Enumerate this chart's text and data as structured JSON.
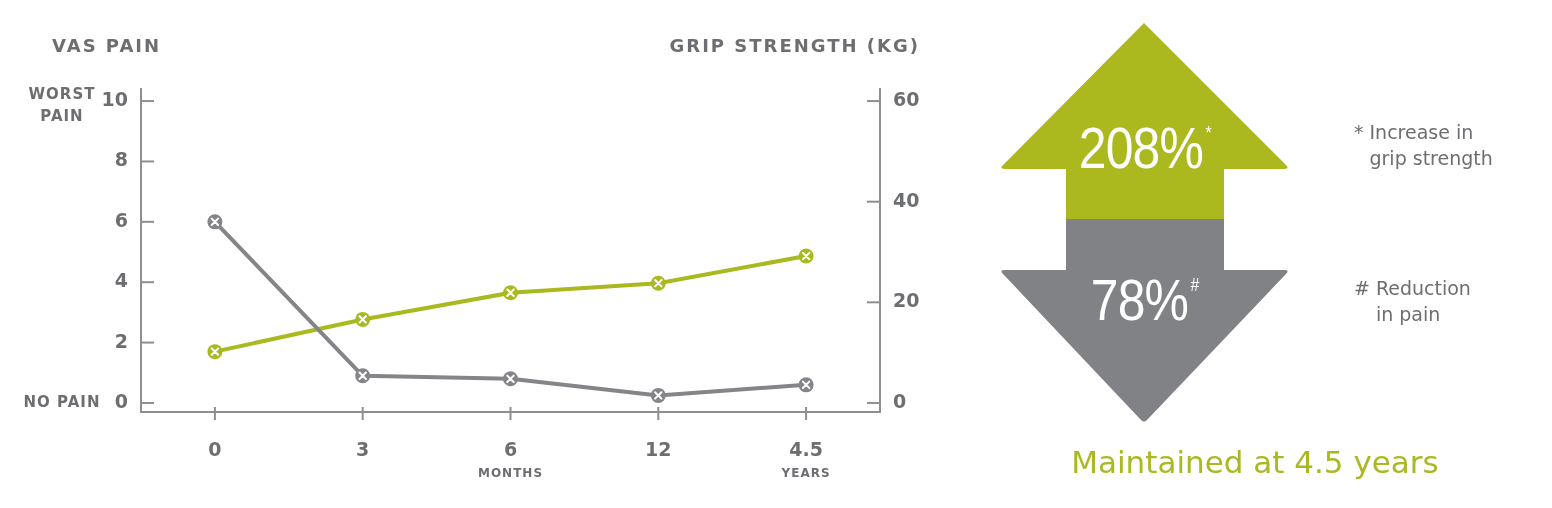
{
  "chart_data": [
    {
      "type": "line",
      "ylabel": "VAS PAIN",
      "y2label": "GRIP STRENGTH (KG)",
      "categories": [
        "0",
        "3",
        "6\nMONTHS",
        "12",
        "4.5\nYEARS"
      ],
      "ylim": [
        -0.3,
        10.4
      ],
      "yticks": [
        0,
        2,
        4,
        6,
        8,
        10
      ],
      "y2lim": [
        -1.8,
        62.4
      ],
      "y2ticks": [
        0,
        20,
        40,
        60
      ],
      "marker": "circle",
      "series": [
        {
          "color": "#848589",
          "values": [
            6,
            0.9,
            0.8,
            0.25,
            0.6
          ]
        },
        {
          "color": "#a9b91f",
          "axis": "y2",
          "values": [
            10.2,
            16.6,
            21.9,
            23.8,
            29.2
          ]
        }
      ],
      "annotations": [
        "WORST\nPAIN",
        "NO PAIN"
      ]
    },
    {
      "type": "other",
      "annotations": [
        "208%$^{*}$",
        "78%$^{#}$",
        "* Increase in\ngrip strength",
        "# Reduction\nin pain",
        "Maintained at 4.5 years"
      ]
    }
  ]
}
